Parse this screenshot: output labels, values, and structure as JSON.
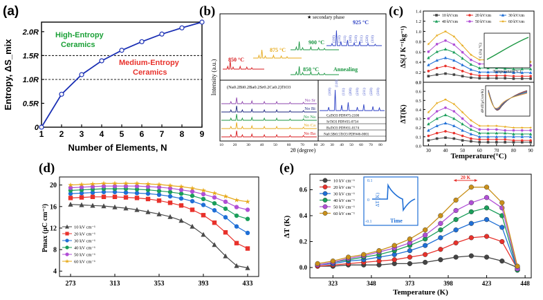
{
  "panels": {
    "a": {
      "label": "(a)"
    },
    "b": {
      "label": "(b)"
    },
    "c": {
      "label": "(c)"
    },
    "d": {
      "label": "(d)"
    },
    "e": {
      "label": "(e)"
    }
  },
  "chart_data": [
    {
      "id": "a",
      "type": "line",
      "xlabel": "Number of Elements, N",
      "ylabel": "Entropy, ΔS_mix",
      "x": [
        1,
        2,
        3,
        4,
        5,
        6,
        7,
        8,
        9
      ],
      "values": [
        0,
        0.69,
        1.1,
        1.39,
        1.61,
        1.79,
        1.95,
        2.08,
        2.2
      ],
      "xticks": [
        "1",
        "2",
        "3",
        "4",
        "5",
        "6",
        "7",
        "8",
        "9"
      ],
      "yticks": [
        "0",
        "0.5R",
        "1.0R",
        "1.5R",
        "2.0R"
      ],
      "ylim": [
        0,
        2.2
      ],
      "reference_lines": [
        1.0,
        1.5
      ],
      "annotations": [
        "High-Entropy",
        "Ceramics",
        "Medium-Entropy",
        "Ceramics"
      ],
      "color": "#1a2fb4"
    },
    {
      "id": "b",
      "type": "line",
      "top": {
        "legend": "secondary phase",
        "annotation_annealing": "Annealing",
        "temperature_labels": [
          "850 °C",
          "875 °C",
          "900 °C",
          "925 °C",
          "850 °C"
        ],
        "series_colors": [
          "#d7191c",
          "#e6a817",
          "#1a9641",
          "#2b3fc4",
          "#1a9641"
        ],
        "peak_labels": [
          "(100)",
          "(110)",
          "(111)",
          "(200)",
          "(210)",
          "(211)",
          "(220)",
          "(310)"
        ]
      },
      "bottom_left": {
        "title": "(Na0.2Bi0.2Ba0.2Sr0.2Ca0.2)TiO3",
        "series": [
          "No Sr",
          "No Bi",
          "No Na",
          "No Ca",
          "No Ba"
        ],
        "series_colors": [
          "#8e44ad",
          "#1a237e",
          "#1a9641",
          "#e6a817",
          "#d7191c"
        ]
      },
      "bottom_right": {
        "references": [
          "CaTiO3 PDF#75-2100",
          "SrTiO3 PDF#35-0734",
          "BaTiO3 PDF#31-0174",
          "Na0.5Bi0.5TiO3 PDF#46-0001"
        ],
        "peak_labels": [
          "(100)",
          "(110)",
          "(111)",
          "(200)",
          "(210)",
          "(211)",
          "(220)",
          "(310)"
        ]
      },
      "xlabel": "2θ (degree)",
      "ylabel": "Intensity (a.u.)",
      "xticks": [
        "10",
        "20",
        "30",
        "40",
        "50",
        "60",
        "70",
        "80",
        "20",
        "30",
        "40",
        "50",
        "60",
        "70",
        "80"
      ]
    },
    {
      "id": "c",
      "type": "line",
      "x": [
        30,
        35,
        40,
        45,
        50,
        55,
        60,
        65,
        70,
        75,
        80,
        85,
        90
      ],
      "xlabel": "Temperature(°C)",
      "xticks": [
        "30",
        "40",
        "50",
        "60",
        "70",
        "80",
        "90"
      ],
      "top": {
        "ylabel": "ΔS(J K⁻¹kg⁻¹)",
        "ylim": [
          0,
          1.4
        ],
        "yticks": [
          "0.0",
          "0.2",
          "0.4",
          "0.6",
          "0.8",
          "1.0",
          "1.2",
          "1.4"
        ],
        "series": [
          {
            "name": "10 kV/cm",
            "color": "#444444",
            "values": [
              0.12,
              0.15,
              0.17,
              0.15,
              0.12,
              0.09,
              0.08,
              0.08,
              0.08,
              0.08,
              0.07,
              0.07,
              0.07
            ]
          },
          {
            "name": "20 kV/cm",
            "color": "#e8312b",
            "values": [
              0.22,
              0.28,
              0.32,
              0.28,
              0.22,
              0.16,
              0.13,
              0.13,
              0.13,
              0.13,
              0.12,
              0.12,
              0.12
            ]
          },
          {
            "name": "30 kV/cm",
            "color": "#1f6fd6",
            "values": [
              0.34,
              0.43,
              0.48,
              0.43,
              0.34,
              0.25,
              0.2,
              0.2,
              0.2,
              0.2,
              0.19,
              0.19,
              0.19
            ]
          },
          {
            "name": "40 kV/cm",
            "color": "#1a9e5a",
            "values": [
              0.48,
              0.6,
              0.65,
              0.59,
              0.47,
              0.35,
              0.28,
              0.28,
              0.28,
              0.27,
              0.26,
              0.26,
              0.26
            ]
          },
          {
            "name": "50 kV/cm",
            "color": "#b14fd6",
            "values": [
              0.6,
              0.75,
              0.82,
              0.74,
              0.59,
              0.44,
              0.36,
              0.36,
              0.35,
              0.34,
              0.33,
              0.33,
              0.33
            ]
          },
          {
            "name": "60 kV/cm",
            "color": "#e6a817",
            "values": [
              0.75,
              0.92,
              1.0,
              0.9,
              0.72,
              0.54,
              0.44,
              0.44,
              0.43,
              0.42,
              0.4,
              0.4,
              0.4
            ]
          }
        ],
        "inset": {
          "ylabel": "C (J/g °C)",
          "xlabel": "Temperature(°C)",
          "yticks": [
            "0.90",
            "0.95",
            "1.00",
            "1.05"
          ],
          "xticks": [
            "30",
            "40",
            "50",
            "60",
            "70",
            "80",
            "90"
          ]
        }
      },
      "bottom": {
        "ylabel": "ΔT(K)",
        "ylim": [
          0,
          0.7
        ],
        "yticks": [
          "0.0",
          "0.1",
          "0.2",
          "0.3",
          "0.4",
          "0.5",
          "0.6",
          "0.7"
        ],
        "series": [
          {
            "name": "10 kV/cm",
            "color": "#444444",
            "values": [
              0.06,
              0.08,
              0.09,
              0.08,
              0.06,
              0.05,
              0.04,
              0.04,
              0.04,
              0.04,
              0.04,
              0.04,
              0.04
            ]
          },
          {
            "name": "20 kV/cm",
            "color": "#e8312b",
            "values": [
              0.11,
              0.14,
              0.16,
              0.14,
              0.11,
              0.08,
              0.07,
              0.07,
              0.07,
              0.07,
              0.06,
              0.06,
              0.06
            ]
          },
          {
            "name": "30 kV/cm",
            "color": "#1f6fd6",
            "values": [
              0.17,
              0.22,
              0.25,
              0.22,
              0.17,
              0.13,
              0.1,
              0.1,
              0.1,
              0.1,
              0.1,
              0.1,
              0.1
            ]
          },
          {
            "name": "40 kV/cm",
            "color": "#1a9e5a",
            "values": [
              0.24,
              0.3,
              0.34,
              0.3,
              0.24,
              0.18,
              0.14,
              0.14,
              0.14,
              0.14,
              0.13,
              0.13,
              0.13
            ]
          },
          {
            "name": "50 kV/cm",
            "color": "#b14fd6",
            "values": [
              0.3,
              0.38,
              0.42,
              0.38,
              0.3,
              0.22,
              0.18,
              0.18,
              0.18,
              0.17,
              0.17,
              0.17,
              0.17
            ]
          },
          {
            "name": "60 kV/cm",
            "color": "#e6a817",
            "values": [
              0.37,
              0.47,
              0.51,
              0.46,
              0.37,
              0.28,
              0.22,
              0.22,
              0.22,
              0.21,
              0.2,
              0.2,
              0.2
            ]
          }
        ],
        "inset": {
          "ylabel": "dP/dT(μC/cm²K)",
          "yticks": [
            "0.00",
            "-0.02",
            "-0.04",
            "-0.06",
            "-0.08",
            "-0.10"
          ],
          "xticks": [
            "30",
            "40",
            "50",
            "60",
            "70",
            "80",
            "90"
          ]
        }
      }
    },
    {
      "id": "d",
      "type": "line",
      "ylabel": "Pmax (μC cm⁻²)",
      "x": [
        273,
        283,
        293,
        303,
        313,
        323,
        333,
        343,
        353,
        363,
        373,
        383,
        393,
        403,
        413,
        423,
        433
      ],
      "xticks": [
        "273",
        "313",
        "353",
        "393",
        "433"
      ],
      "yticks": [
        "4",
        "8",
        "12",
        "16",
        "20"
      ],
      "ylim": [
        3,
        21.5
      ],
      "series": [
        {
          "name": "10 kV cm⁻¹",
          "color": "#4a4a4a",
          "marker": "triangle",
          "values": [
            16.4,
            16.3,
            16.2,
            16.1,
            15.9,
            15.7,
            15.4,
            15.0,
            14.6,
            14.1,
            13.4,
            12.3,
            10.8,
            8.9,
            6.8,
            5.0,
            4.6
          ]
        },
        {
          "name": "20 kV cm⁻¹",
          "color": "#e8312b",
          "marker": "square",
          "values": [
            17.6,
            17.7,
            17.8,
            17.8,
            17.8,
            17.7,
            17.6,
            17.4,
            17.1,
            16.7,
            16.2,
            15.4,
            14.4,
            13.0,
            11.2,
            9.2,
            8.2
          ]
        },
        {
          "name": "30 kV cm⁻¹",
          "color": "#1f6fd6",
          "marker": "circle",
          "values": [
            18.4,
            18.5,
            18.6,
            18.7,
            18.7,
            18.6,
            18.5,
            18.4,
            18.2,
            17.9,
            17.5,
            17.0,
            16.3,
            15.3,
            14.0,
            12.3,
            11.1
          ]
        },
        {
          "name": "40 kV cm⁻¹",
          "color": "#1a9e5a",
          "marker": "circle",
          "values": [
            19.0,
            19.1,
            19.2,
            19.3,
            19.3,
            19.3,
            19.2,
            19.1,
            18.9,
            18.7,
            18.4,
            18.0,
            17.4,
            16.6,
            15.6,
            14.3,
            13.7
          ]
        },
        {
          "name": "50 kV cm⁻¹",
          "color": "#b14fd6",
          "marker": "circle",
          "values": [
            19.5,
            19.6,
            19.7,
            19.8,
            19.8,
            19.8,
            19.8,
            19.7,
            19.6,
            19.4,
            19.1,
            18.8,
            18.3,
            17.7,
            16.9,
            15.9,
            15.4
          ]
        },
        {
          "name": "60 kV cm⁻¹",
          "color": "#e6a817",
          "marker": "star",
          "values": [
            20.0,
            20.1,
            20.2,
            20.3,
            20.3,
            20.3,
            20.3,
            20.2,
            20.1,
            19.9,
            19.7,
            19.4,
            19.0,
            18.5,
            17.9,
            17.2,
            16.9
          ]
        }
      ]
    },
    {
      "id": "e",
      "type": "line",
      "xlabel": "Temperature (K)",
      "ylabel": "ΔT (K)",
      "x": [
        313,
        323,
        333,
        343,
        353,
        363,
        373,
        383,
        393,
        403,
        413,
        423,
        433,
        443
      ],
      "xticks": [
        "323",
        "348",
        "373",
        "398",
        "423",
        "448"
      ],
      "yticks": [
        "0.0",
        "0.2",
        "0.4",
        "0.6"
      ],
      "ylim": [
        -0.08,
        0.72
      ],
      "annotation": "20 K",
      "series": [
        {
          "name": "10 kV cm⁻¹",
          "color": "#444444",
          "values": [
            0.01,
            0.01,
            0.02,
            0.02,
            0.02,
            0.03,
            0.03,
            0.04,
            0.06,
            0.08,
            0.09,
            0.08,
            0.05,
            0.0
          ]
        },
        {
          "name": "20 kV cm⁻¹",
          "color": "#e8312b",
          "values": [
            0.01,
            0.02,
            0.03,
            0.04,
            0.05,
            0.06,
            0.08,
            0.1,
            0.14,
            0.19,
            0.23,
            0.24,
            0.2,
            -0.01
          ]
        },
        {
          "name": "30 kV cm⁻¹",
          "color": "#1f6fd6",
          "values": [
            0.02,
            0.03,
            0.05,
            0.06,
            0.08,
            0.1,
            0.13,
            0.17,
            0.23,
            0.29,
            0.34,
            0.37,
            0.31,
            -0.02
          ]
        },
        {
          "name": "40 kV cm⁻¹",
          "color": "#1a9e5a",
          "values": [
            0.02,
            0.04,
            0.06,
            0.08,
            0.1,
            0.13,
            0.17,
            0.22,
            0.29,
            0.37,
            0.43,
            0.46,
            0.4,
            -0.02
          ]
        },
        {
          "name": "50 kV cm⁻¹",
          "color": "#b14fd6",
          "values": [
            0.02,
            0.04,
            0.07,
            0.09,
            0.12,
            0.15,
            0.19,
            0.25,
            0.34,
            0.44,
            0.5,
            0.54,
            0.46,
            -0.01
          ]
        },
        {
          "name": "60 kV cm⁻¹",
          "color": "#c9901a",
          "values": [
            0.03,
            0.05,
            0.08,
            0.1,
            0.13,
            0.17,
            0.22,
            0.29,
            0.4,
            0.52,
            0.62,
            0.62,
            0.5,
            0.01
          ]
        }
      ],
      "inset": {
        "ylabel": "ΔT (K)",
        "xlabel": "Time",
        "yticks": [
          "0.1",
          "0",
          "-0.1"
        ]
      }
    }
  ]
}
